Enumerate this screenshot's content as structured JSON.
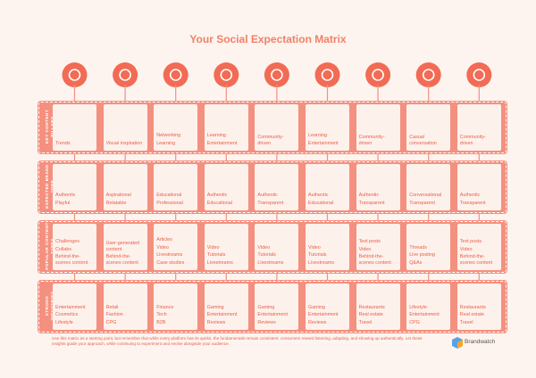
{
  "title": "Your Social Expectation Matrix",
  "rows": [
    {
      "label": "KEY CONTENT PILLARS",
      "cells": [
        [
          "Trends"
        ],
        [
          "Visual inspiration"
        ],
        [
          "Networking",
          "Learning"
        ],
        [
          "Learning",
          "Entertainment"
        ],
        [
          "Community-driven"
        ],
        [
          "Learning",
          "Entertainment"
        ],
        [
          "Community-driven"
        ],
        [
          "Casual conversation"
        ],
        [
          "Community-driven"
        ]
      ]
    },
    {
      "label": "EXPECTED BRAND TONE",
      "cells": [
        [
          "Authentic",
          "Playful"
        ],
        [
          "Aspirational",
          "Relatable"
        ],
        [
          "Educational",
          "Professional"
        ],
        [
          "Authentic",
          "Educational"
        ],
        [
          "Authentic",
          "Transparent"
        ],
        [
          "Authentic",
          "Educational"
        ],
        [
          "Authentic",
          "Transparent"
        ],
        [
          "Conversational",
          "Transparent"
        ],
        [
          "Authentic",
          "Transparent"
        ]
      ]
    },
    {
      "label": "POPULAR CONTENT TYPES",
      "cells": [
        [
          "Challenges",
          "Collabs",
          "Behind-the-scenes content"
        ],
        [
          "User-generated content",
          "Behind-the-scenes content"
        ],
        [
          "Articles",
          "Video",
          "Livestreams",
          "Case studies"
        ],
        [
          "Video",
          "Tutorials",
          "Livestreams"
        ],
        [
          "Video",
          "Tutorials",
          "Livestreams"
        ],
        [
          "Video",
          "Tutorials",
          "Livestreams"
        ],
        [
          "Text posts",
          "Video",
          "Behind-the-scenes content"
        ],
        [
          "Threads",
          "Live posting",
          "Q&As"
        ],
        [
          "Text posts",
          "Video",
          "Behind-the-scenes content"
        ]
      ]
    },
    {
      "label": "STRONG INDUSTRIES",
      "cells": [
        [
          "Entertainment",
          "Cosmetics",
          "Lifestyle"
        ],
        [
          "Retail",
          "Fashion",
          "CPG"
        ],
        [
          "Finance",
          "Tech",
          "B2B"
        ],
        [
          "Gaming",
          "Entertainment",
          "Reviews"
        ],
        [
          "Gaming",
          "Entertainment",
          "Reviews"
        ],
        [
          "Gaming",
          "Entertainment",
          "Reviews"
        ],
        [
          "Restaurants",
          "Real estate",
          "Travel"
        ],
        [
          "Lifestyle",
          "Entertainment",
          "CPG"
        ],
        [
          "Restaurants",
          "Real estate",
          "Travel"
        ]
      ]
    }
  ],
  "footer": {
    "note": "Use this matrix as a starting point, but remember that while every platform has its quirks, the fundamentals remain consistent: consumers reward listening, adapting, and showing up authentically. Let these insights guide your approach, while continuing to experiment and evolve alongside your audience.",
    "brand": "Brandwatch"
  }
}
